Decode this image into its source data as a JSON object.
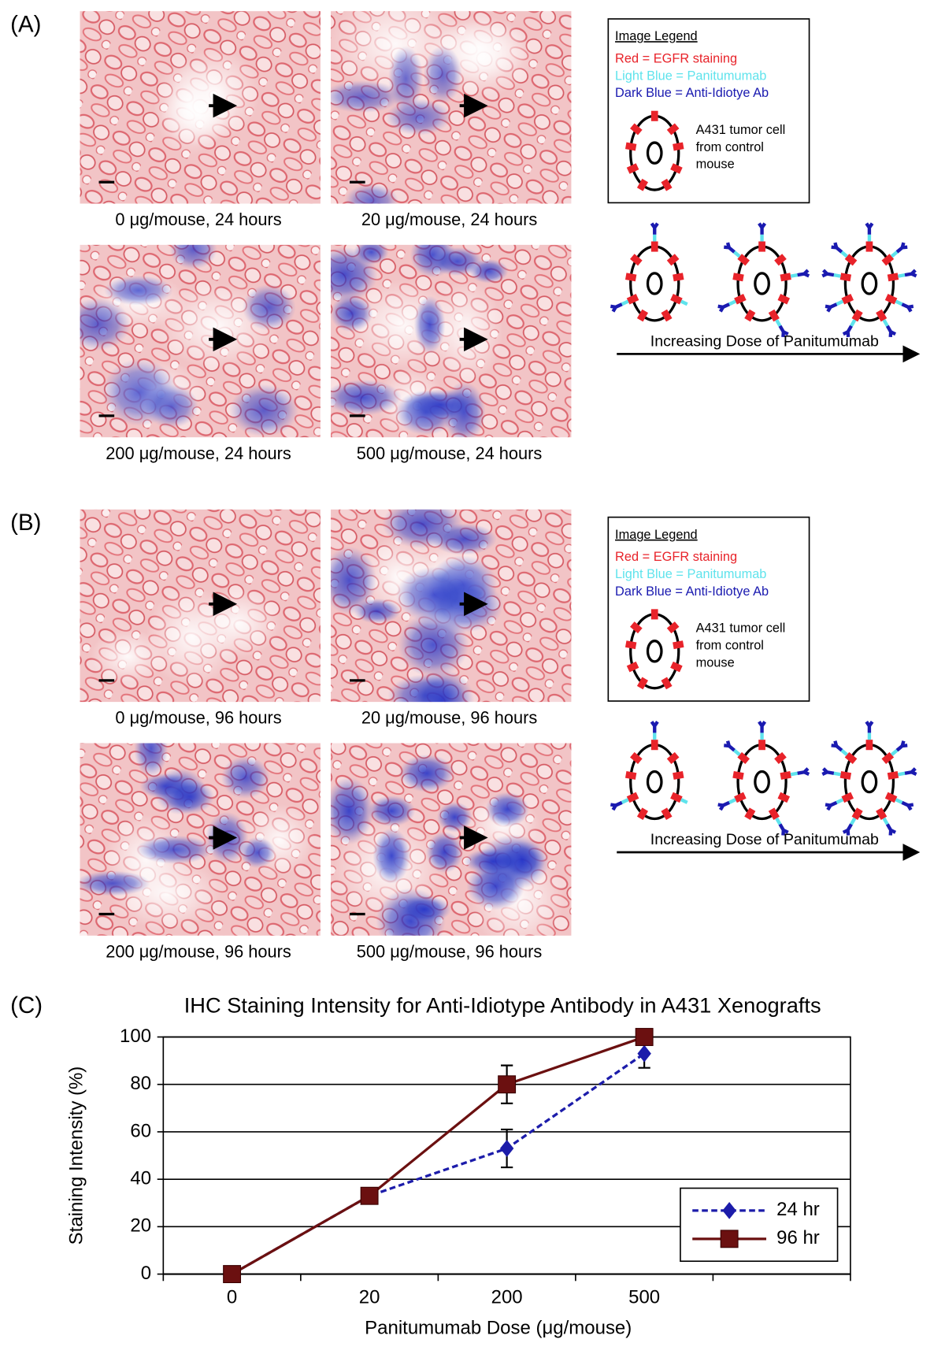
{
  "panel_a": {
    "label": "(A)",
    "captions": [
      "0 μg/mouse, 24 hours",
      "20 μg/mouse, 24 hours",
      "200 μg/mouse, 24 hours",
      "500 μg/mouse, 24 hours"
    ],
    "legend": {
      "title": "Image Legend",
      "lines": [
        "Red = EGFR staining",
        "Light Blue = Panitumumab",
        "Dark Blue = Anti-Idiotye Ab"
      ],
      "cell_label": [
        "A431 tumor cell",
        "from control",
        "mouse"
      ]
    },
    "diagram_label": "Increasing Dose of Panitumumab"
  },
  "panel_b": {
    "label": "(B)",
    "captions": [
      "0 μg/mouse, 96 hours",
      "20 μg/mouse, 96 hours",
      "200 μg/mouse, 96 hours",
      "500 μg/mouse, 96 hours"
    ],
    "legend": {
      "title": "Image Legend",
      "lines": [
        "Red = EGFR staining",
        "Light Blue = Panitumumab",
        "Dark Blue = Anti-Idiotye Ab"
      ],
      "cell_label": [
        "A431 tumor cell",
        "from control",
        "mouse"
      ]
    },
    "diagram_label": "Increasing Dose of Panitumumab"
  },
  "chart_data": {
    "type": "line",
    "panel_label": "(C)",
    "title": "IHC Staining Intensity for Anti-Idiotype Antibody in A431 Xenografts",
    "x_label": "Panitumumab Dose (μg/mouse)",
    "y_label": "Staining Intensity (%)",
    "categories": [
      "0",
      "20",
      "200",
      "500",
      null
    ],
    "series": [
      {
        "name": "24 hr",
        "color": "#1c1caa",
        "line_style": "dashed",
        "marker": "diamond",
        "values": [
          0,
          33,
          53,
          93,
          null
        ],
        "errors": [
          0,
          0,
          8,
          6,
          null
        ]
      },
      {
        "name": "96 hr",
        "color": "#6b1010",
        "line_style": "solid",
        "marker": "square",
        "values": [
          0,
          33,
          80,
          100,
          null
        ],
        "errors": [
          0,
          0,
          8,
          0,
          null
        ]
      }
    ],
    "ylim": [
      0,
      100
    ],
    "yticks": [
      0,
      20,
      40,
      60,
      80,
      100
    ],
    "grid": true,
    "legend_position": "lower right"
  }
}
